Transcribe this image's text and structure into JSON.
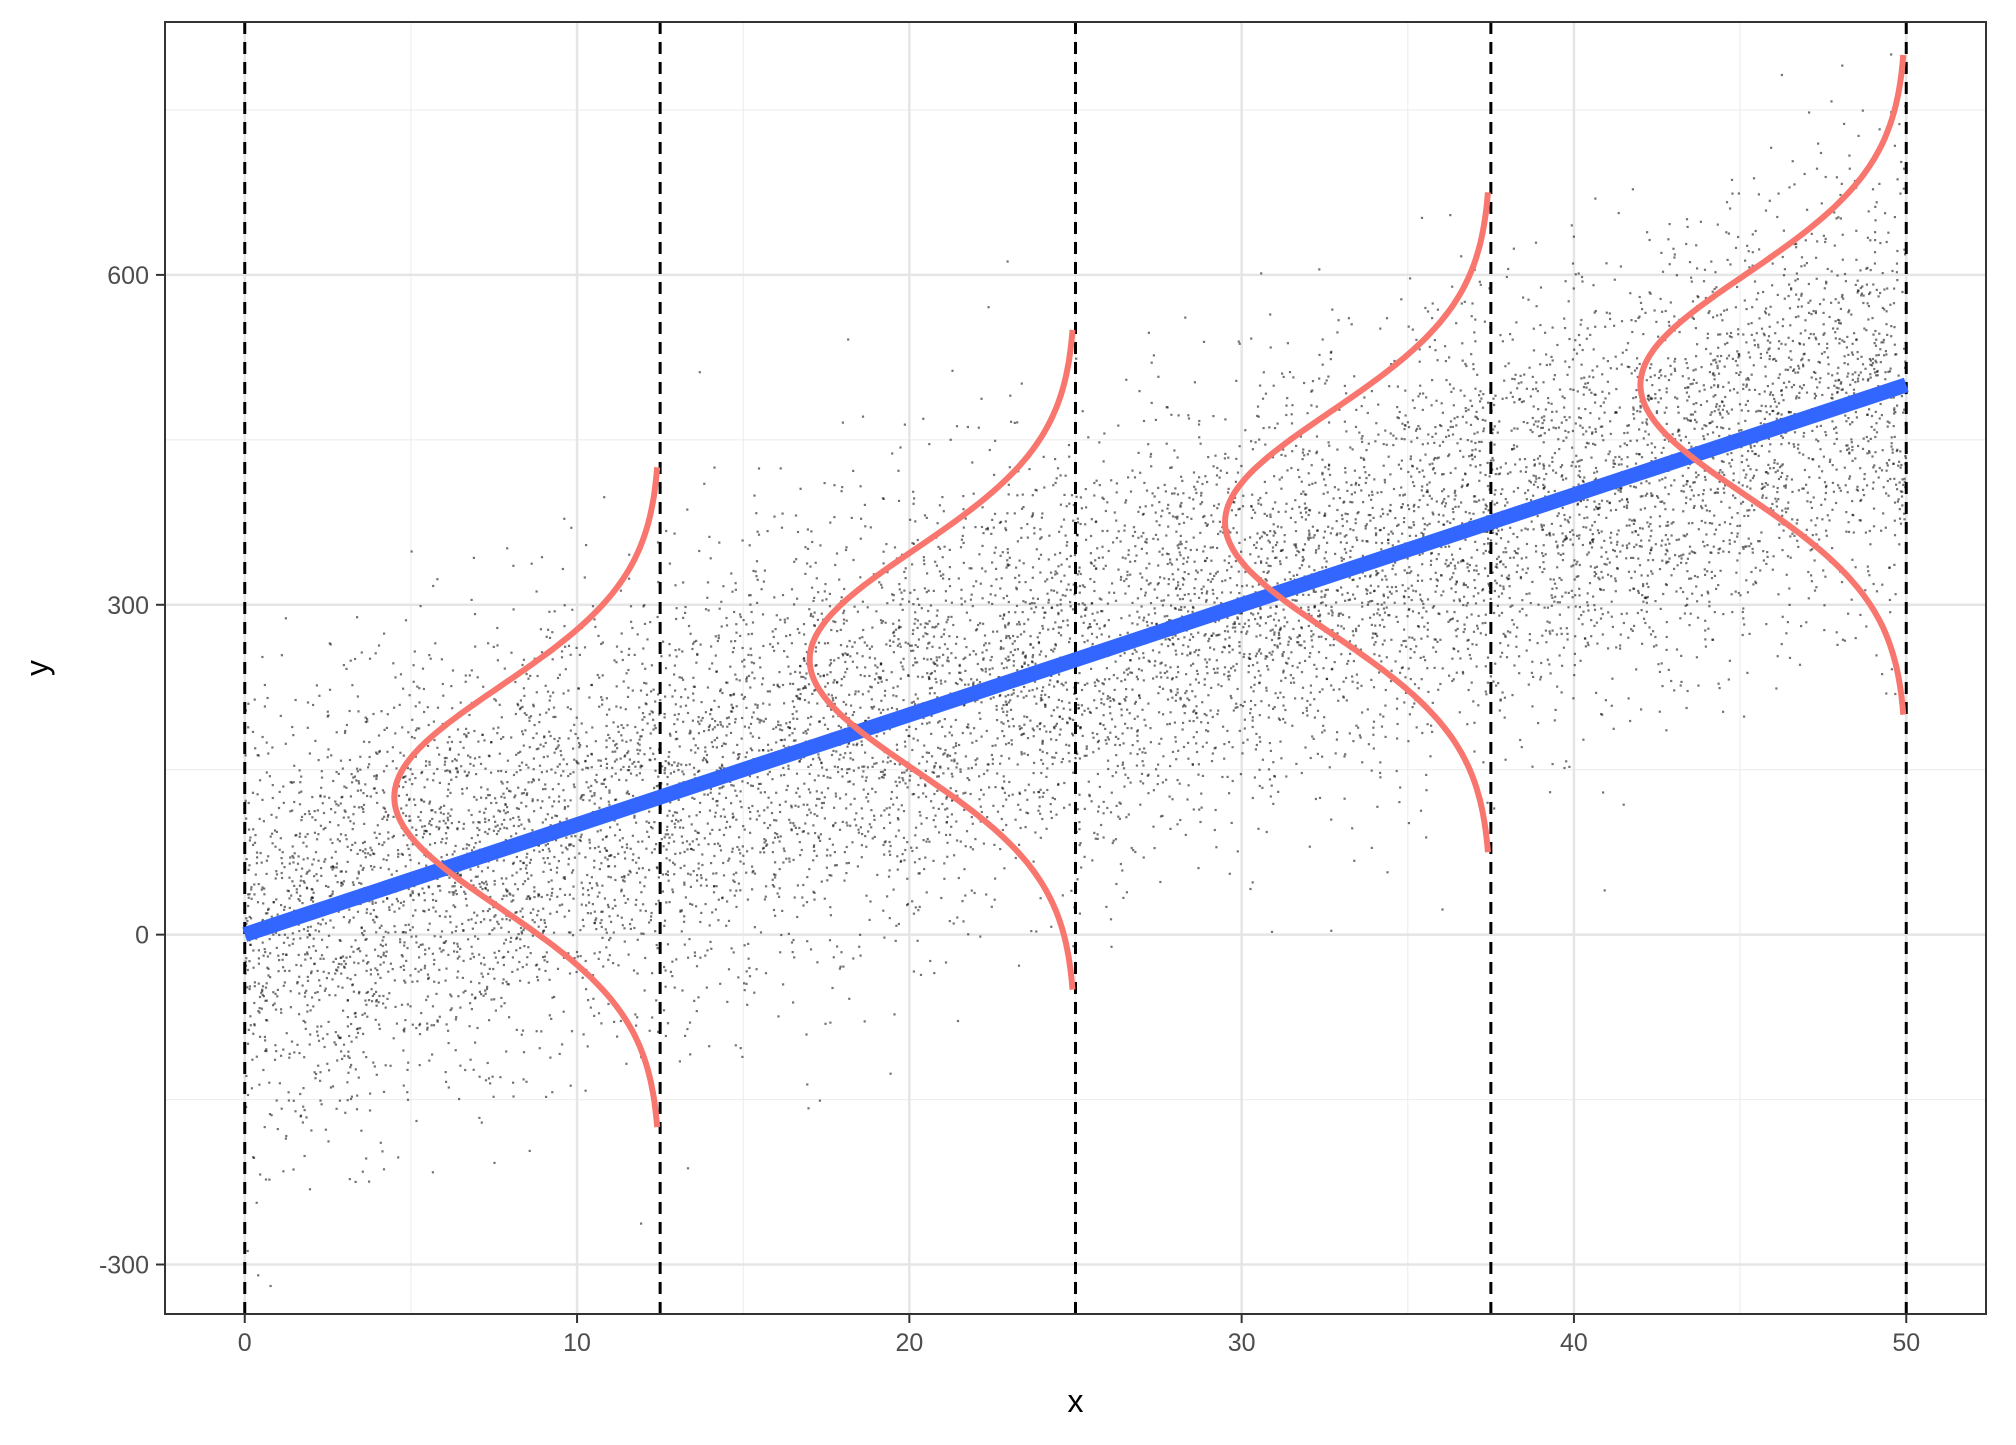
{
  "chart_data": {
    "type": "scatter",
    "title": "",
    "xlabel": "x",
    "ylabel": "y",
    "xlim": [
      -2.4,
      52.4
    ],
    "ylim": [
      -345,
      830
    ],
    "x_ticks": [
      0,
      10,
      20,
      30,
      40,
      50
    ],
    "y_ticks": [
      -300,
      0,
      300,
      600
    ],
    "x_tick_labels": [
      "0",
      "10",
      "20",
      "30",
      "40",
      "50"
    ],
    "y_tick_labels": [
      "-300",
      "0",
      "300",
      "600"
    ],
    "grid": true,
    "theme": "bw",
    "scatter": {
      "n_points": 10000,
      "x_range": [
        0,
        50
      ],
      "intercept": 0,
      "slope": 10,
      "residual_sd": 100,
      "seed": 42,
      "color": "#000000",
      "opacity": 0.55
    },
    "regression_line": {
      "intercept": 0,
      "slope": 10,
      "x_range": [
        0,
        50
      ],
      "color": "#3366FF"
    },
    "reference_lines": {
      "x": [
        0,
        12.5,
        25,
        37.5,
        50
      ],
      "style": "dashed",
      "color": "#000000"
    },
    "density_curves": {
      "x_positions": [
        12.5,
        25,
        37.5,
        50
      ],
      "sd": 100,
      "y_extent_sd": 3,
      "peak_width_x": 8,
      "color": "#F8766D"
    }
  }
}
